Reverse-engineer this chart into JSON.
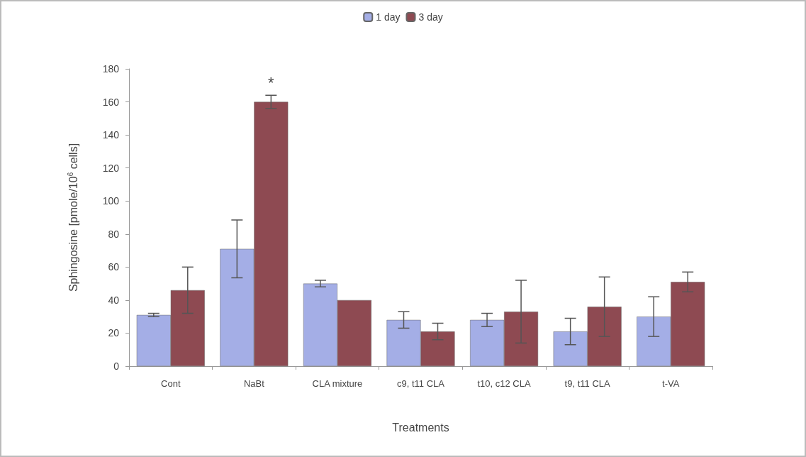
{
  "chart_data": {
    "type": "bar",
    "xlabel": "Treatments",
    "ylabel": "Sphingosine [pmole/10$^{6}$ cells]",
    "categories": [
      "Cont",
      "NaBt",
      "CLA mixture",
      "c9, t11 CLA",
      "t10, c12 CLA",
      "t9, t11 CLA",
      "t-VA"
    ],
    "series": [
      {
        "name": "1 day",
        "color": "#a4aee6",
        "values": [
          31,
          71,
          50,
          28,
          28,
          21,
          30
        ],
        "errors": [
          1,
          17.5,
          2,
          5,
          4,
          8,
          12
        ]
      },
      {
        "name": "3 day",
        "color": "#8e4a52",
        "values": [
          46,
          160,
          40,
          21,
          33,
          36,
          51
        ],
        "errors": [
          14,
          4,
          null,
          5,
          19,
          18,
          6
        ]
      }
    ],
    "ylim": [
      0,
      180
    ],
    "yticks": [
      0,
      20,
      40,
      60,
      80,
      100,
      120,
      140,
      160,
      180
    ],
    "grid": false,
    "legend": "top",
    "annotations": [
      "*"
    ]
  }
}
